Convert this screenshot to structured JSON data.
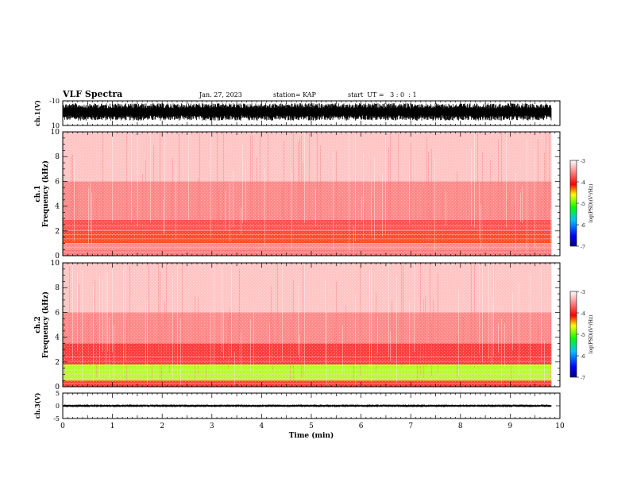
{
  "header": {
    "title": "VLF Spectra",
    "date": "Jan. 27, 2023",
    "station": "station= KAP",
    "start": "start  UT =   3 : 0  : 1"
  },
  "chart_data": [
    {
      "type": "line",
      "title": "",
      "ylabel": "ch.1(V)",
      "ylim": [
        -10,
        10
      ],
      "ticks": [
        "-10",
        "10"
      ],
      "description_values": {
        "typical_low": -6,
        "typical_high": 8
      }
    },
    {
      "type": "heatmap",
      "ylabel": "ch.1\nFrequency (kHz)",
      "ylabel_lines": [
        "ch.1",
        "Frequency  (kHz)"
      ],
      "ylim": [
        0,
        10
      ],
      "yticks": [
        "0",
        "2",
        "4",
        "6",
        "8",
        "10"
      ],
      "colorbar": {
        "label": "log(PSD)(V²/Hz)",
        "range": [
          -7,
          -3
        ],
        "ticks": [
          "-3",
          "-4",
          "-5",
          "-6",
          "-7"
        ]
      },
      "bands": [
        {
          "f_lo": 0.0,
          "f_hi": 0.5,
          "level": -3.7
        },
        {
          "f_lo": 0.5,
          "f_hi": 1.0,
          "level": -3.6
        },
        {
          "f_lo": 1.0,
          "f_hi": 2.0,
          "level": -4.2
        },
        {
          "f_lo": 2.0,
          "f_hi": 2.9,
          "level": -3.9
        },
        {
          "f_lo": 2.9,
          "f_hi": 6.0,
          "level": -3.6
        },
        {
          "f_lo": 6.0,
          "f_hi": 10.0,
          "level": -3.3
        }
      ]
    },
    {
      "type": "heatmap",
      "ylabel": "ch.2\nFrequency (kHz)",
      "ylabel_lines": [
        "ch.2",
        "Frequency  (kHz)"
      ],
      "ylim": [
        0,
        10
      ],
      "yticks": [
        "0",
        "2",
        "4",
        "6",
        "8",
        "10"
      ],
      "colorbar": {
        "label": "log(PSD)(V²/Hz)",
        "range": [
          -7,
          -3
        ],
        "ticks": [
          "-3",
          "-4",
          "-5",
          "-6",
          "-7"
        ]
      },
      "bands": [
        {
          "f_lo": 0.0,
          "f_hi": 0.5,
          "level": -4.0
        },
        {
          "f_lo": 0.5,
          "f_hi": 1.8,
          "level": -4.8
        },
        {
          "f_lo": 1.8,
          "f_hi": 3.5,
          "level": -4.0
        },
        {
          "f_lo": 3.5,
          "f_hi": 6.0,
          "level": -3.6
        },
        {
          "f_lo": 6.0,
          "f_hi": 10.0,
          "level": -3.3
        }
      ]
    },
    {
      "type": "line",
      "ylabel": "ch.3(V)",
      "ylim": [
        -5,
        5
      ],
      "ticks": [
        "5",
        "0",
        "-5"
      ],
      "description_values": {
        "typical_low": -0.5,
        "typical_high": 0.5
      }
    }
  ],
  "xaxis": {
    "label": "Time  (min)",
    "xlim": [
      0,
      10
    ],
    "ticks": [
      "0",
      "1",
      "2",
      "3",
      "4",
      "5",
      "6",
      "7",
      "8",
      "9",
      "10"
    ],
    "data_end": 9.83
  }
}
